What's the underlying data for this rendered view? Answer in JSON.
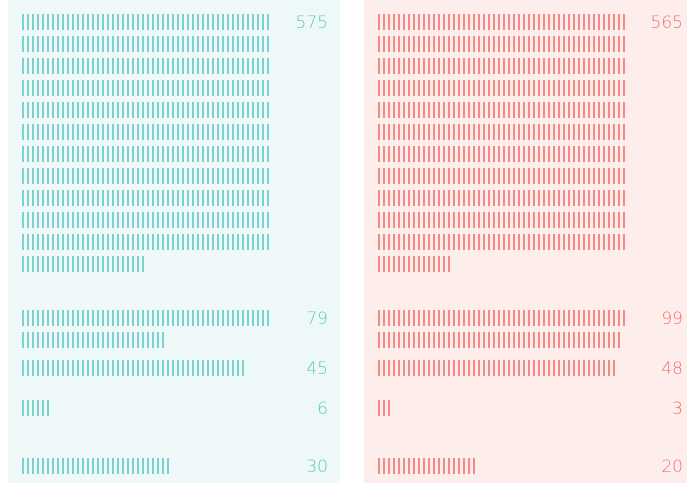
{
  "chart_data": [
    {
      "type": "tally",
      "color": "#5ec8c6",
      "background": "#eef8f8",
      "categories": [
        null,
        null,
        null,
        null,
        null
      ],
      "values": [
        575,
        79,
        45,
        6,
        30
      ]
    },
    {
      "type": "tally",
      "color": "#f2706c",
      "background": "#fdeeec",
      "categories": [
        null,
        null,
        null,
        null,
        null
      ],
      "values": [
        565,
        99,
        48,
        3,
        20
      ]
    }
  ]
}
